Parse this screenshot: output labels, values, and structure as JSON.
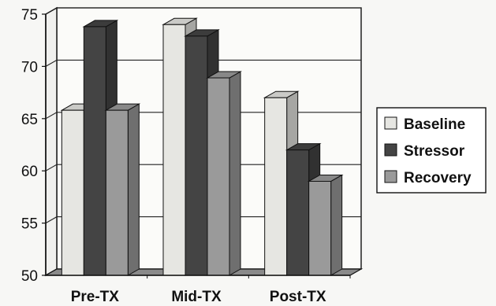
{
  "chart_data": {
    "type": "bar",
    "title": "",
    "xlabel": "",
    "ylabel": "",
    "categories": [
      "Pre-TX",
      "Mid-TX",
      "Post-TX"
    ],
    "series": [
      {
        "name": "Baseline",
        "values": [
          65.8,
          74.0,
          67.0
        ]
      },
      {
        "name": "Stressor",
        "values": [
          73.8,
          72.9,
          62.0
        ]
      },
      {
        "name": "Recovery",
        "values": [
          65.8,
          68.9,
          59.0
        ]
      }
    ],
    "ylim": [
      50,
      75
    ],
    "yticks": [
      "50",
      "55",
      "60",
      "65",
      "70",
      "75"
    ],
    "grid": true,
    "legend_position": "right",
    "colors": {
      "Baseline": "#e6e6e2",
      "Stressor": "#444444",
      "Recovery": "#9a9a9a"
    },
    "style": "3d-clustered-column"
  }
}
